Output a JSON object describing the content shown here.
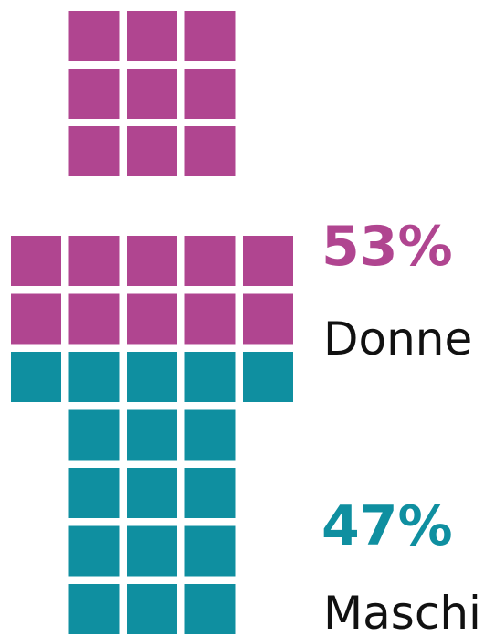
{
  "chart_data": {
    "type": "waffle",
    "series": [
      {
        "name": "Donne",
        "color": "#b04590",
        "values": [
          53
        ],
        "value_labels": [
          "53%"
        ]
      },
      {
        "name": "Maschi",
        "color": "#0f8fa0",
        "values": [
          47
        ],
        "value_labels": [
          "47%"
        ]
      }
    ]
  }
}
